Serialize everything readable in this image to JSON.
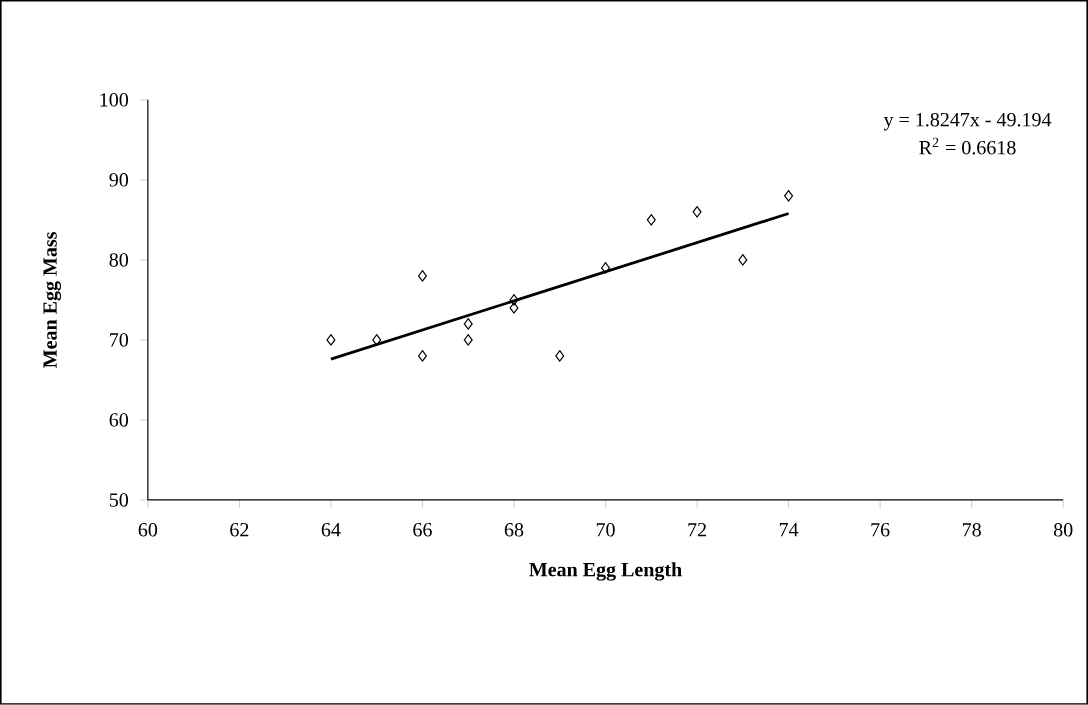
{
  "chart_data": {
    "type": "scatter",
    "xlabel": "Mean Egg Length",
    "ylabel": "Mean Egg Mass",
    "xlim": [
      60,
      80
    ],
    "ylim": [
      50,
      100
    ],
    "xticks": [
      60,
      62,
      64,
      66,
      68,
      70,
      72,
      74,
      76,
      78,
      80
    ],
    "yticks": [
      50,
      60,
      70,
      80,
      90,
      100
    ],
    "grid": false,
    "marker": "diamond",
    "annotations": [
      "y = 1.8247x - 49.194",
      "R$^{2}$ = 0.6618"
    ],
    "series": [
      {
        "color": "#000000",
        "x": [
          64,
          65,
          66,
          66,
          67,
          67,
          68,
          68,
          69,
          70,
          71,
          72,
          73,
          74
        ],
        "values": [
          70,
          70,
          78,
          68,
          72,
          70,
          75,
          74,
          68,
          79,
          85,
          86,
          80,
          88
        ]
      },
      {
        "type": "line",
        "color": "#000000",
        "marker": "none",
        "line_style": "solid",
        "x": [
          64,
          74
        ],
        "values": [
          67.6,
          85.8
        ]
      }
    ]
  }
}
